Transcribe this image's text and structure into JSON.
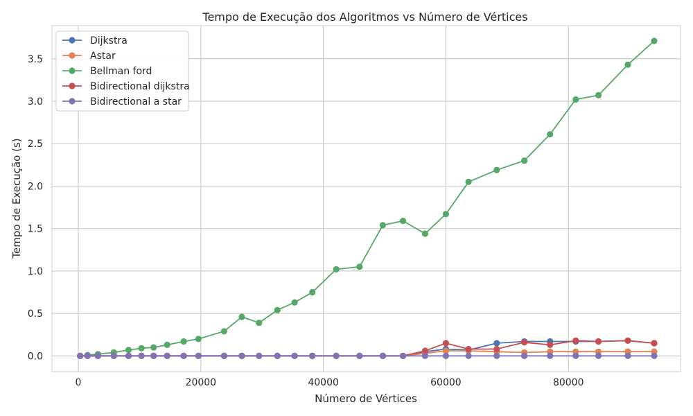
{
  "chart_data": {
    "type": "line",
    "title": "Tempo de Execução dos Algoritmos vs Número de Vértices",
    "xlabel": "Número de Vértices",
    "ylabel": "Tempo de Execução (s)",
    "xlim": [
      -4300,
      98300
    ],
    "ylim": [
      -0.185,
      3.89
    ],
    "xticks": [
      0,
      20000,
      40000,
      60000,
      80000
    ],
    "yticks": [
      0.0,
      0.5,
      1.0,
      1.5,
      2.0,
      2.5,
      3.0,
      3.5
    ],
    "xtick_labels": [
      "0",
      "20000",
      "40000",
      "60000",
      "80000"
    ],
    "ytick_labels": [
      "0.0",
      "0.5",
      "1.0",
      "1.5",
      "2.0",
      "2.5",
      "3.0",
      "3.5"
    ],
    "grid": true,
    "legend_position": "upper-left",
    "x": [
      300,
      1500,
      3200,
      5800,
      8200,
      10300,
      12300,
      14500,
      17200,
      19600,
      23800,
      26700,
      29500,
      32500,
      35300,
      38200,
      42100,
      45900,
      49700,
      53000,
      56600,
      60000,
      63700,
      68300,
      72800,
      77000,
      81200,
      84900,
      89700,
      94000
    ],
    "series": [
      {
        "name": "Dijkstra",
        "color": "#4c72b0",
        "values": [
          0.0,
          0.0,
          0.0,
          0.0,
          0.0,
          0.0,
          0.0,
          0.0,
          0.0,
          0.0,
          0.0,
          0.0,
          0.0,
          0.0,
          0.0,
          0.0,
          0.0,
          0.0,
          0.0,
          0.0,
          0.05,
          0.08,
          0.07,
          0.15,
          0.17,
          0.17,
          0.17,
          0.17,
          0.18,
          0.15
        ]
      },
      {
        "name": "Astar",
        "color": "#dd8452",
        "values": [
          0.0,
          0.0,
          0.0,
          0.0,
          0.0,
          0.0,
          0.0,
          0.0,
          0.0,
          0.0,
          0.0,
          0.0,
          0.0,
          0.0,
          0.0,
          0.0,
          0.0,
          0.0,
          0.0,
          0.0,
          0.03,
          0.06,
          0.06,
          0.05,
          0.04,
          0.05,
          0.05,
          0.05,
          0.05,
          0.05
        ]
      },
      {
        "name": "Bellman ford",
        "color": "#55a868",
        "values": [
          0.0,
          0.01,
          0.02,
          0.04,
          0.07,
          0.09,
          0.1,
          0.13,
          0.17,
          0.2,
          0.29,
          0.46,
          0.39,
          0.54,
          0.63,
          0.75,
          1.02,
          1.05,
          1.54,
          1.59,
          1.44,
          1.67,
          2.05,
          2.19,
          2.3,
          2.61,
          3.02,
          3.07,
          3.43,
          3.71
        ]
      },
      {
        "name": "Bidirectional dijkstra",
        "color": "#c44e52",
        "values": [
          0.0,
          0.0,
          0.0,
          0.0,
          0.0,
          0.0,
          0.0,
          0.0,
          0.0,
          0.0,
          0.0,
          0.0,
          0.0,
          0.0,
          0.0,
          0.0,
          0.0,
          0.0,
          0.0,
          0.0,
          0.06,
          0.15,
          0.08,
          0.08,
          0.16,
          0.13,
          0.18,
          0.17,
          0.18,
          0.15
        ]
      },
      {
        "name": "Bidirectional a star",
        "color": "#8172b3",
        "values": [
          0.0,
          0.0,
          0.0,
          0.0,
          0.0,
          0.0,
          0.0,
          0.0,
          0.0,
          0.0,
          0.0,
          0.0,
          0.0,
          0.0,
          0.0,
          0.0,
          0.0,
          0.0,
          0.0,
          0.0,
          0.0,
          0.0,
          0.0,
          0.0,
          0.0,
          0.0,
          0.0,
          0.0,
          0.0,
          0.0
        ]
      }
    ]
  }
}
